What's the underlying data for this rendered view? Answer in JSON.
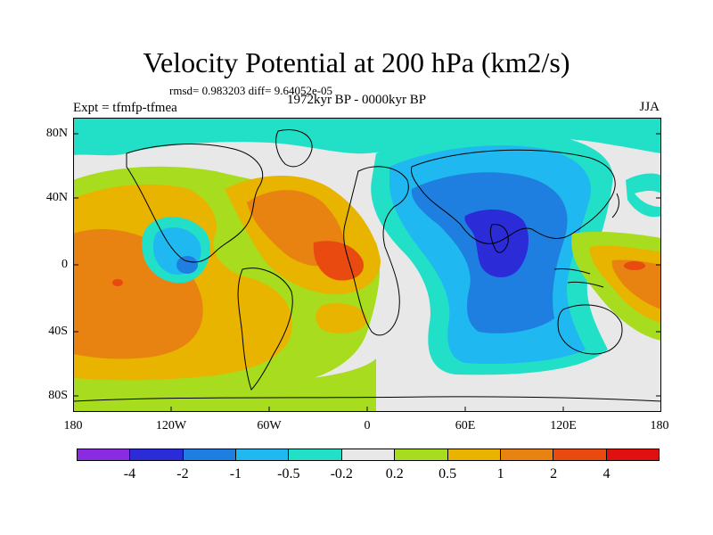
{
  "title": "Velocity Potential at 200 hPa (km2/s)",
  "stats": "rmsd= 0.983203  diff= 9.64052e-05",
  "left_label": "Expt = tfmfp-tfmea",
  "center_label": "1972kyr BP - 0000kyr BP",
  "right_label": "JJA",
  "lat_labels": [
    "80N",
    "40N",
    "0",
    "40S",
    "80S"
  ],
  "lon_labels": [
    "180",
    "120W",
    "60W",
    "0",
    "60E",
    "120E",
    "180"
  ],
  "colorbar": {
    "colors": [
      "#8a2be2",
      "#2b2bd8",
      "#1e7fe0",
      "#1fb8f0",
      "#22e0c8",
      "#e8e8e8",
      "#a8dc1e",
      "#e8b400",
      "#e88210",
      "#e84a10",
      "#e01010"
    ],
    "labels": [
      "-4",
      "-2",
      "-1",
      "-0.5",
      "-0.2",
      "0.2",
      "0.5",
      "1",
      "2",
      "4"
    ]
  }
}
